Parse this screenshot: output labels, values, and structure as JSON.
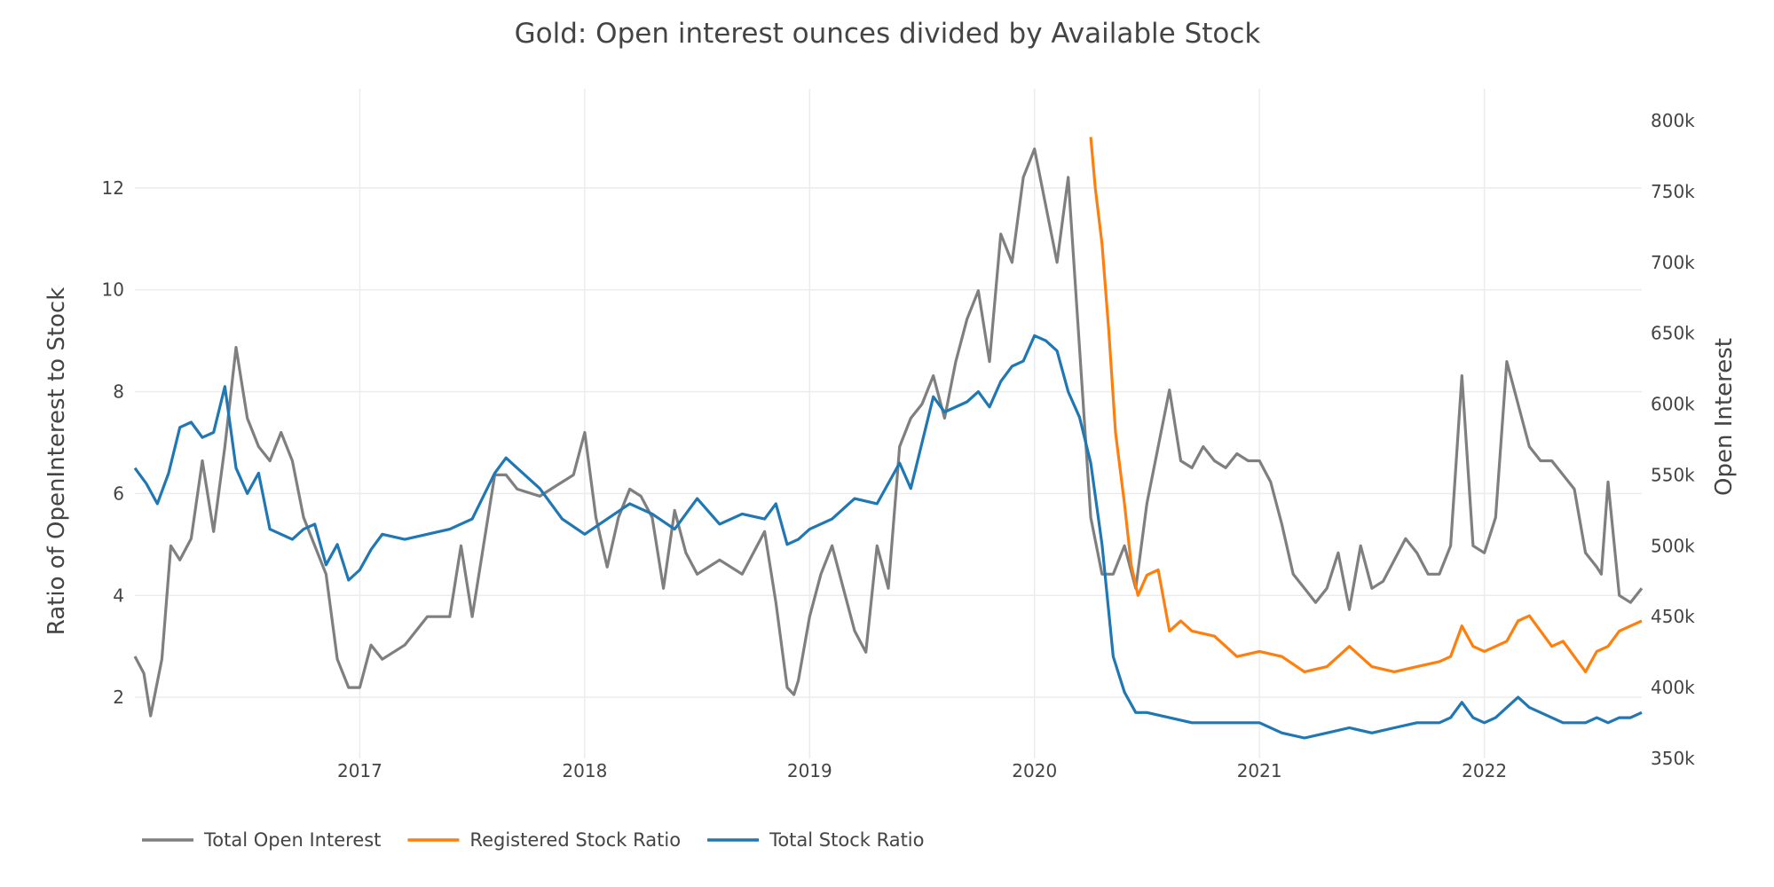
{
  "chart_data": {
    "type": "line",
    "title": "Gold: Open interest ounces divided by Available Stock",
    "ylabel": "Ratio of OpenInterest to Stock",
    "y2label": "Open Interest",
    "xlim": [
      2016.0,
      2022.7
    ],
    "ylim": [
      0.8,
      13.6
    ],
    "y2lim": [
      350000,
      810000
    ],
    "x_ticks": [
      2017,
      2018,
      2019,
      2020,
      2021,
      2022
    ],
    "x_tick_labels": [
      "2017",
      "2018",
      "2019",
      "2020",
      "2021",
      "2022"
    ],
    "y_ticks": [
      2,
      4,
      6,
      8,
      10,
      12
    ],
    "y_tick_labels": [
      "2",
      "4",
      "6",
      "8",
      "10",
      "12"
    ],
    "y2_ticks": [
      350000,
      400000,
      450000,
      500000,
      550000,
      600000,
      650000,
      700000,
      750000,
      800000
    ],
    "y2_tick_labels": [
      "350k",
      "400k",
      "450k",
      "500k",
      "550k",
      "600k",
      "650k",
      "700k",
      "750k",
      "800k"
    ],
    "grid": true,
    "legend_position": "bottom-left",
    "series": [
      {
        "name": "Total Open Interest",
        "axis": "right",
        "color": "#7f7f7f",
        "x": [
          2016.0,
          2016.04,
          2016.07,
          2016.12,
          2016.16,
          2016.2,
          2016.25,
          2016.3,
          2016.35,
          2016.4,
          2016.45,
          2016.5,
          2016.55,
          2016.6,
          2016.65,
          2016.7,
          2016.75,
          2016.8,
          2016.85,
          2016.9,
          2016.95,
          2017.0,
          2017.05,
          2017.1,
          2017.2,
          2017.3,
          2017.4,
          2017.45,
          2017.5,
          2017.55,
          2017.6,
          2017.65,
          2017.7,
          2017.8,
          2017.9,
          2017.95,
          2018.0,
          2018.05,
          2018.1,
          2018.15,
          2018.2,
          2018.25,
          2018.3,
          2018.35,
          2018.4,
          2018.45,
          2018.5,
          2018.6,
          2018.7,
          2018.8,
          2018.85,
          2018.9,
          2018.93,
          2018.95,
          2019.0,
          2019.05,
          2019.1,
          2019.15,
          2019.2,
          2019.25,
          2019.3,
          2019.35,
          2019.4,
          2019.45,
          2019.5,
          2019.55,
          2019.6,
          2019.65,
          2019.7,
          2019.75,
          2019.8,
          2019.85,
          2019.9,
          2019.95,
          2020.0,
          2020.05,
          2020.1,
          2020.15,
          2020.2,
          2020.25,
          2020.3,
          2020.35,
          2020.4,
          2020.45,
          2020.5,
          2020.55,
          2020.6,
          2020.65,
          2020.7,
          2020.75,
          2020.8,
          2020.85,
          2020.9,
          2020.95,
          2021.0,
          2021.05,
          2021.1,
          2021.15,
          2021.2,
          2021.25,
          2021.3,
          2021.35,
          2021.4,
          2021.45,
          2021.5,
          2021.55,
          2021.6,
          2021.65,
          2021.7,
          2021.75,
          2021.8,
          2021.85,
          2021.9,
          2021.95,
          2022.0,
          2022.05,
          2022.1,
          2022.15,
          2022.2,
          2022.25,
          2022.3,
          2022.35,
          2022.4,
          2022.45,
          2022.5,
          2022.52,
          2022.55,
          2022.6,
          2022.65,
          2022.7
        ],
        "values": [
          422000,
          410000,
          380000,
          420000,
          500000,
          490000,
          505000,
          560000,
          510000,
          570000,
          640000,
          590000,
          570000,
          560000,
          580000,
          560000,
          520000,
          500000,
          480000,
          420000,
          400000,
          400000,
          430000,
          420000,
          430000,
          450000,
          450000,
          500000,
          450000,
          500000,
          550000,
          550000,
          540000,
          535000,
          545000,
          550000,
          580000,
          520000,
          485000,
          520000,
          540000,
          535000,
          520000,
          470000,
          525000,
          495000,
          480000,
          490000,
          480000,
          510000,
          460000,
          400000,
          395000,
          405000,
          450000,
          480000,
          500000,
          470000,
          440000,
          425000,
          500000,
          470000,
          570000,
          590000,
          600000,
          620000,
          590000,
          630000,
          660000,
          680000,
          630000,
          720000,
          700000,
          760000,
          780000,
          740000,
          700000,
          760000,
          640000,
          520000,
          480000,
          480000,
          500000,
          470000,
          530000,
          570000,
          610000,
          560000,
          555000,
          570000,
          560000,
          555000,
          565000,
          560000,
          560000,
          545000,
          515000,
          480000,
          470000,
          460000,
          470000,
          495000,
          455000,
          500000,
          470000,
          475000,
          490000,
          505000,
          495000,
          480000,
          480000,
          500000,
          620000,
          500000,
          495000,
          520000,
          630000,
          600000,
          570000,
          560000,
          560000,
          550000,
          540000,
          495000,
          485000,
          480000,
          545000,
          465000,
          460000,
          470000
        ]
      },
      {
        "name": "Registered Stock Ratio",
        "axis": "left",
        "color": "#ff7f0e",
        "x": [
          2020.25,
          2020.27,
          2020.3,
          2020.33,
          2020.36,
          2020.4,
          2020.43,
          2020.46,
          2020.5,
          2020.55,
          2020.6,
          2020.65,
          2020.7,
          2020.8,
          2020.9,
          2021.0,
          2021.1,
          2021.2,
          2021.3,
          2021.4,
          2021.5,
          2021.6,
          2021.7,
          2021.8,
          2021.85,
          2021.9,
          2021.95,
          2022.0,
          2022.05,
          2022.1,
          2022.15,
          2022.2,
          2022.25,
          2022.3,
          2022.35,
          2022.4,
          2022.45,
          2022.5,
          2022.55,
          2022.6,
          2022.65,
          2022.7
        ],
        "values": [
          13.0,
          12.0,
          10.9,
          9.2,
          7.2,
          5.8,
          4.6,
          4.0,
          4.4,
          4.5,
          3.3,
          3.5,
          3.3,
          3.2,
          2.8,
          2.9,
          2.8,
          2.5,
          2.6,
          3.0,
          2.6,
          2.5,
          2.6,
          2.7,
          2.8,
          3.4,
          3.0,
          2.9,
          3.0,
          3.1,
          3.5,
          3.6,
          3.3,
          3.0,
          3.1,
          2.8,
          2.5,
          2.9,
          3.0,
          3.3,
          3.4,
          3.5
        ]
      },
      {
        "name": "Total Stock Ratio",
        "axis": "left",
        "color": "#1f77b4",
        "x": [
          2016.0,
          2016.05,
          2016.1,
          2016.15,
          2016.2,
          2016.25,
          2016.3,
          2016.35,
          2016.4,
          2016.45,
          2016.5,
          2016.55,
          2016.6,
          2016.65,
          2016.7,
          2016.75,
          2016.8,
          2016.85,
          2016.9,
          2016.95,
          2017.0,
          2017.05,
          2017.1,
          2017.2,
          2017.3,
          2017.4,
          2017.5,
          2017.6,
          2017.65,
          2017.7,
          2017.8,
          2017.9,
          2018.0,
          2018.1,
          2018.2,
          2018.3,
          2018.4,
          2018.5,
          2018.6,
          2018.7,
          2018.8,
          2018.85,
          2018.9,
          2018.95,
          2019.0,
          2019.1,
          2019.2,
          2019.3,
          2019.4,
          2019.45,
          2019.5,
          2019.55,
          2019.6,
          2019.7,
          2019.75,
          2019.8,
          2019.85,
          2019.9,
          2019.95,
          2020.0,
          2020.05,
          2020.1,
          2020.15,
          2020.2,
          2020.25,
          2020.3,
          2020.35,
          2020.4,
          2020.45,
          2020.5,
          2020.6,
          2020.7,
          2020.8,
          2020.9,
          2021.0,
          2021.1,
          2021.2,
          2021.3,
          2021.4,
          2021.5,
          2021.6,
          2021.7,
          2021.8,
          2021.85,
          2021.9,
          2021.95,
          2022.0,
          2022.05,
          2022.1,
          2022.15,
          2022.2,
          2022.25,
          2022.3,
          2022.35,
          2022.4,
          2022.45,
          2022.5,
          2022.55,
          2022.6,
          2022.65,
          2022.7
        ],
        "values": [
          6.5,
          6.2,
          5.8,
          6.4,
          7.3,
          7.4,
          7.1,
          7.2,
          8.1,
          6.5,
          6.0,
          6.4,
          5.3,
          5.2,
          5.1,
          5.3,
          5.4,
          4.6,
          5.0,
          4.3,
          4.5,
          4.9,
          5.2,
          5.1,
          5.2,
          5.3,
          5.5,
          6.4,
          6.7,
          6.5,
          6.1,
          5.5,
          5.2,
          5.5,
          5.8,
          5.6,
          5.3,
          5.9,
          5.4,
          5.6,
          5.5,
          5.8,
          5.0,
          5.1,
          5.3,
          5.5,
          5.9,
          5.8,
          6.6,
          6.1,
          7.0,
          7.9,
          7.6,
          7.8,
          8.0,
          7.7,
          8.2,
          8.5,
          8.6,
          9.1,
          9.0,
          8.8,
          8.0,
          7.5,
          6.6,
          5.0,
          2.8,
          2.1,
          1.7,
          1.7,
          1.6,
          1.5,
          1.5,
          1.5,
          1.5,
          1.3,
          1.2,
          1.3,
          1.4,
          1.3,
          1.4,
          1.5,
          1.5,
          1.6,
          1.9,
          1.6,
          1.5,
          1.6,
          1.8,
          2.0,
          1.8,
          1.7,
          1.6,
          1.5,
          1.5,
          1.5,
          1.6,
          1.5,
          1.6,
          1.6,
          1.7
        ]
      }
    ]
  }
}
